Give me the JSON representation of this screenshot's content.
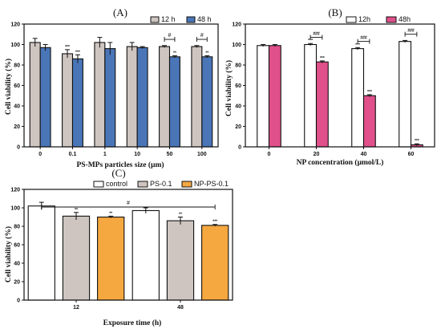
{
  "chart_data": [
    {
      "panel": "(A)",
      "type": "bar",
      "xlabel": "PS-MPs particles size (μm)",
      "ylabel": "Cell viability (%)",
      "ylim": [
        0,
        120
      ],
      "yticks": [
        0,
        20,
        40,
        60,
        80,
        100,
        120
      ],
      "categories": [
        "0",
        "0.1",
        "1",
        "10",
        "50",
        "100"
      ],
      "series": [
        {
          "name": "12 h",
          "color": "#cfc5c0",
          "values": [
            102,
            91,
            102,
            98,
            98,
            98
          ],
          "errors": [
            4,
            4,
            5,
            4,
            1,
            1
          ],
          "annotations": [
            "",
            "***",
            "",
            "",
            "",
            ""
          ]
        },
        {
          "name": "48 h",
          "color": "#4a76b8",
          "values": [
            97,
            86,
            96,
            97,
            88,
            88
          ],
          "errors": [
            3,
            4,
            6,
            1,
            1,
            1
          ],
          "annotations": [
            "",
            "***",
            "",
            "",
            "**",
            "**"
          ]
        }
      ],
      "brackets": [
        {
          "category": "50",
          "label": "#"
        },
        {
          "category": "100",
          "label": "#"
        }
      ],
      "legend": "top-right"
    },
    {
      "panel": "(B)",
      "type": "bar",
      "xlabel": "NP concentration (μmol/L)",
      "ylabel": "Cell viability (%)",
      "ylim": [
        0,
        120
      ],
      "yticks": [
        0,
        20,
        40,
        60,
        80,
        100,
        120
      ],
      "categories": [
        "0",
        "20",
        "40",
        "60"
      ],
      "series": [
        {
          "name": "12h",
          "color": "#ffffff",
          "values": [
            99,
            100,
            96,
            103
          ],
          "errors": [
            1,
            1,
            1,
            1
          ],
          "annotations": [
            "",
            "***",
            "***",
            ""
          ]
        },
        {
          "name": "48h",
          "color": "#e0508a",
          "values": [
            99,
            83,
            50,
            2
          ],
          "errors": [
            1,
            1,
            1,
            1
          ],
          "annotations": [
            "",
            "***",
            "***",
            "***"
          ]
        }
      ],
      "brackets": [
        {
          "category": "20",
          "label": "###"
        },
        {
          "category": "40",
          "label": "###"
        },
        {
          "category": "60",
          "label": "###"
        }
      ],
      "legend": "top-right"
    },
    {
      "panel": "(C)",
      "type": "bar",
      "xlabel": "Exposure time (h)",
      "ylabel": "Cell viability (%)",
      "ylim": [
        0,
        120
      ],
      "yticks": [
        0,
        20,
        40,
        60,
        80,
        100,
        120
      ],
      "categories": [
        "12",
        "48"
      ],
      "series": [
        {
          "name": "control",
          "color": "#ffffff",
          "values": [
            102,
            97
          ],
          "errors": [
            4,
            3
          ],
          "annotations": [
            "",
            ""
          ]
        },
        {
          "name": "PS-0.1",
          "color": "#cfc5c0",
          "values": [
            91,
            86
          ],
          "errors": [
            4,
            4
          ],
          "annotations": [
            "**",
            "**"
          ]
        },
        {
          "name": "NP-PS-0.1",
          "color": "#f5a840",
          "values": [
            90,
            81
          ],
          "errors": [
            1,
            1
          ],
          "annotations": [
            "**",
            "***"
          ]
        }
      ],
      "brackets": [
        {
          "from": "12",
          "to": "48",
          "label": "#"
        }
      ],
      "legend": "top-right"
    }
  ]
}
